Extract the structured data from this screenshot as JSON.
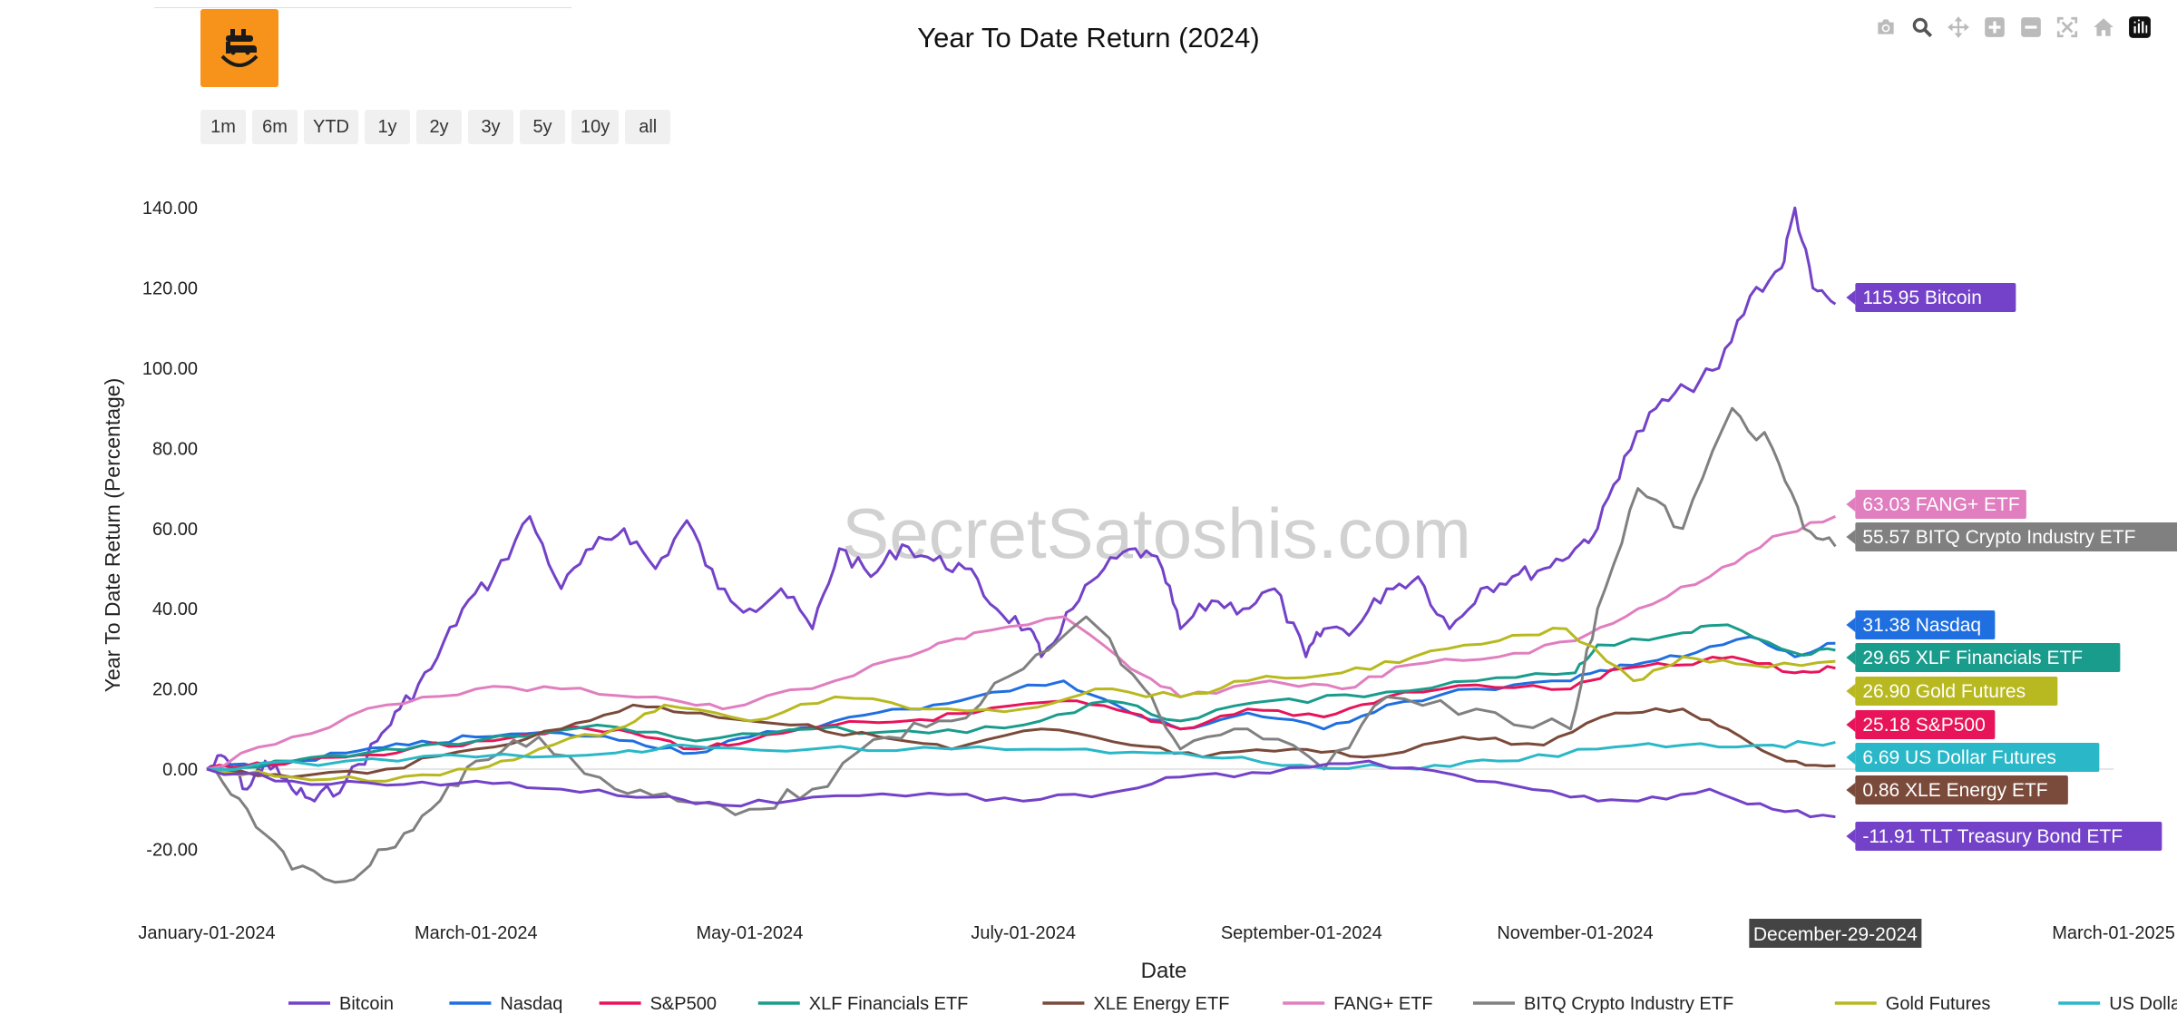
{
  "title": "Year To Date Return (2024)",
  "watermark": "SecretSatoshis.com",
  "range_buttons": [
    "1m",
    "6m",
    "YTD",
    "1y",
    "2y",
    "3y",
    "5y",
    "10y",
    "all"
  ],
  "modebar_icons": [
    "camera-icon",
    "zoom-icon",
    "pan-icon",
    "zoom-in-icon",
    "zoom-out-icon",
    "autoscale-icon",
    "home-icon",
    "plotly-logo-icon"
  ],
  "chart_data": {
    "type": "line",
    "title": "Year To Date Return (2024)",
    "xlabel": "Date",
    "ylabel": "Year To Date Return (Percentage)",
    "ylim": [
      -31,
      150
    ],
    "xlim": [
      "2024-01-01",
      "2025-03-01"
    ],
    "x_ticks": [
      "January-01-2024",
      "March-01-2024",
      "May-01-2024",
      "July-01-2024",
      "September-01-2024",
      "November-01-2024",
      "March-01-2025"
    ],
    "y_ticks": [
      "140.00",
      "120.00",
      "100.00",
      "80.00",
      "60.00",
      "40.00",
      "20.00",
      "0.00",
      "-20.00"
    ],
    "hover_date": "December-29-2024",
    "legend_position": "bottom",
    "series": [
      {
        "name": "Bitcoin",
        "color": "#7342c8",
        "final": "115.95",
        "label": "115.95 Bitcoin",
        "dates": [
          "2024-01-01",
          "2024-01-05",
          "2024-01-10",
          "2024-01-14",
          "2024-01-20",
          "2024-01-25",
          "2024-02-01",
          "2024-02-08",
          "2024-02-13",
          "2024-02-20",
          "2024-02-27",
          "2024-03-05",
          "2024-03-13",
          "2024-03-20",
          "2024-03-27",
          "2024-04-03",
          "2024-04-10",
          "2024-04-17",
          "2024-04-24",
          "2024-05-01",
          "2024-05-08",
          "2024-05-15",
          "2024-05-21",
          "2024-05-28",
          "2024-06-04",
          "2024-06-11",
          "2024-06-18",
          "2024-06-25",
          "2024-07-02",
          "2024-07-05",
          "2024-07-12",
          "2024-07-19",
          "2024-07-26",
          "2024-08-01",
          "2024-08-05",
          "2024-08-12",
          "2024-08-19",
          "2024-08-26",
          "2024-09-02",
          "2024-09-06",
          "2024-09-13",
          "2024-09-20",
          "2024-09-27",
          "2024-10-04",
          "2024-10-11",
          "2024-10-18",
          "2024-10-25",
          "2024-11-01",
          "2024-11-06",
          "2024-11-12",
          "2024-11-19",
          "2024-11-26",
          "2024-12-03",
          "2024-12-10",
          "2024-12-17",
          "2024-12-20",
          "2024-12-24",
          "2024-12-29"
        ],
        "values": [
          0,
          3,
          -5,
          2,
          -5,
          -8,
          -3,
          7,
          15,
          25,
          40,
          48,
          63,
          45,
          55,
          60,
          50,
          62,
          45,
          40,
          45,
          35,
          55,
          48,
          56,
          52,
          50,
          40,
          35,
          28,
          40,
          50,
          55,
          50,
          35,
          42,
          40,
          45,
          28,
          35,
          35,
          45,
          48,
          35,
          45,
          48,
          50,
          55,
          60,
          78,
          90,
          95,
          100,
          118,
          125,
          140,
          120,
          116
        ]
      },
      {
        "name": "Nasdaq",
        "color": "#1f6fe0",
        "final": "31.38",
        "label": "31.38 Nasdaq",
        "dates": [
          "2024-01-01",
          "2024-01-15",
          "2024-02-01",
          "2024-02-15",
          "2024-03-01",
          "2024-03-20",
          "2024-04-05",
          "2024-04-19",
          "2024-05-01",
          "2024-05-20",
          "2024-06-05",
          "2024-06-20",
          "2024-07-10",
          "2024-07-25",
          "2024-08-05",
          "2024-08-20",
          "2024-09-06",
          "2024-09-20",
          "2024-10-10",
          "2024-10-31",
          "2024-11-11",
          "2024-11-25",
          "2024-12-10",
          "2024-12-20",
          "2024-12-29"
        ],
        "values": [
          0,
          1,
          4,
          6,
          8,
          9,
          7,
          4,
          8,
          12,
          15,
          18,
          22,
          14,
          10,
          14,
          10,
          16,
          20,
          22,
          26,
          28,
          33,
          28,
          31.38
        ]
      },
      {
        "name": "S&P500",
        "color": "#e8145a",
        "final": "25.18",
        "label": "25.18 S&P500",
        "dates": [
          "2024-01-01",
          "2024-01-15",
          "2024-02-01",
          "2024-02-15",
          "2024-03-01",
          "2024-03-20",
          "2024-04-05",
          "2024-04-19",
          "2024-05-01",
          "2024-05-20",
          "2024-06-05",
          "2024-06-20",
          "2024-07-10",
          "2024-07-25",
          "2024-08-05",
          "2024-08-20",
          "2024-09-06",
          "2024-09-20",
          "2024-10-10",
          "2024-10-31",
          "2024-11-11",
          "2024-11-25",
          "2024-12-06",
          "2024-12-20",
          "2024-12-29"
        ],
        "values": [
          0,
          1,
          3,
          5,
          7,
          10,
          9,
          5,
          7,
          11,
          12,
          14,
          17,
          14,
          10,
          15,
          13,
          18,
          21,
          20,
          25,
          26,
          28,
          24,
          25.18
        ]
      },
      {
        "name": "XLF Financials ETF",
        "color": "#1a9c8c",
        "final": "29.65",
        "label": "29.65 XLF Financials ETF",
        "dates": [
          "2024-01-01",
          "2024-01-20",
          "2024-02-10",
          "2024-03-01",
          "2024-03-28",
          "2024-04-19",
          "2024-05-15",
          "2024-06-10",
          "2024-07-01",
          "2024-07-20",
          "2024-08-05",
          "2024-08-25",
          "2024-09-15",
          "2024-10-10",
          "2024-11-01",
          "2024-11-06",
          "2024-11-25",
          "2024-12-05",
          "2024-12-20",
          "2024-12-29"
        ],
        "values": [
          0,
          2,
          5,
          7,
          11,
          7,
          10,
          9,
          11,
          17,
          12,
          17,
          18,
          22,
          24,
          31,
          34,
          36,
          29,
          29.65
        ]
      },
      {
        "name": "XLE Energy ETF",
        "color": "#7a4a3a",
        "final": "0.86",
        "label": "0.86 XLE Energy ETF",
        "dates": [
          "2024-01-01",
          "2024-01-20",
          "2024-02-10",
          "2024-03-01",
          "2024-03-20",
          "2024-04-05",
          "2024-04-20",
          "2024-05-10",
          "2024-05-30",
          "2024-06-15",
          "2024-07-05",
          "2024-07-25",
          "2024-08-10",
          "2024-08-30",
          "2024-09-15",
          "2024-10-07",
          "2024-10-25",
          "2024-11-10",
          "2024-11-25",
          "2024-12-05",
          "2024-12-18",
          "2024-12-29"
        ],
        "values": [
          0,
          -2,
          0,
          5,
          10,
          16,
          14,
          11,
          8,
          5,
          10,
          6,
          3,
          5,
          3,
          8,
          6,
          14,
          15,
          10,
          2,
          0.86
        ]
      },
      {
        "name": "FANG+ ETF",
        "color": "#e07ec0",
        "final": "63.03",
        "label": "63.03 FANG+ ETF",
        "dates": [
          "2024-01-01",
          "2024-01-20",
          "2024-02-10",
          "2024-03-01",
          "2024-03-20",
          "2024-04-10",
          "2024-04-25",
          "2024-05-20",
          "2024-06-10",
          "2024-06-20",
          "2024-07-10",
          "2024-07-25",
          "2024-08-05",
          "2024-08-25",
          "2024-09-10",
          "2024-09-25",
          "2024-10-15",
          "2024-11-01",
          "2024-11-15",
          "2024-12-01",
          "2024-12-15",
          "2024-12-29"
        ],
        "values": [
          0,
          8,
          16,
          20,
          20,
          18,
          15,
          22,
          30,
          34,
          38,
          25,
          18,
          22,
          20,
          26,
          28,
          32,
          40,
          48,
          58,
          63.03
        ]
      },
      {
        "name": "BITQ Crypto Industry ETF",
        "color": "#808080",
        "final": "55.57",
        "label": "55.57 BITQ Crypto Industry ETF",
        "dates": [
          "2024-01-01",
          "2024-01-10",
          "2024-01-20",
          "2024-02-01",
          "2024-02-10",
          "2024-02-20",
          "2024-03-01",
          "2024-03-15",
          "2024-04-01",
          "2024-04-15",
          "2024-05-01",
          "2024-05-15",
          "2024-06-01",
          "2024-06-15",
          "2024-07-01",
          "2024-07-15",
          "2024-07-28",
          "2024-08-05",
          "2024-08-20",
          "2024-09-06",
          "2024-09-20",
          "2024-10-10",
          "2024-10-31",
          "2024-11-06",
          "2024-11-15",
          "2024-11-25",
          "2024-12-06",
          "2024-12-15",
          "2024-12-22",
          "2024-12-29"
        ],
        "values": [
          0,
          -10,
          -25,
          -28,
          -20,
          -10,
          2,
          8,
          -5,
          -8,
          -10,
          -5,
          8,
          12,
          25,
          38,
          20,
          5,
          10,
          0,
          18,
          15,
          10,
          40,
          70,
          60,
          90,
          80,
          60,
          55.57
        ]
      },
      {
        "name": "Gold Futures",
        "color": "#b8b820",
        "final": "26.90",
        "label": "26.90 Gold Futures",
        "dates": [
          "2024-01-01",
          "2024-01-20",
          "2024-02-10",
          "2024-03-01",
          "2024-03-15",
          "2024-04-01",
          "2024-04-12",
          "2024-05-01",
          "2024-05-20",
          "2024-06-10",
          "2024-07-01",
          "2024-07-17",
          "2024-08-05",
          "2024-08-20",
          "2024-09-10",
          "2024-09-26",
          "2024-10-15",
          "2024-10-30",
          "2024-11-14",
          "2024-11-25",
          "2024-12-10",
          "2024-12-29"
        ],
        "values": [
          0,
          -2,
          -3,
          0,
          5,
          10,
          16,
          12,
          18,
          15,
          15,
          20,
          18,
          22,
          24,
          28,
          32,
          35,
          22,
          28,
          26,
          26.9
        ]
      },
      {
        "name": "US Dollar Futures",
        "color": "#2ab8c8",
        "final": "6.69",
        "label": "6.69 US Dollar Futures",
        "dates": [
          "2024-01-01",
          "2024-02-01",
          "2024-03-01",
          "2024-04-01",
          "2024-04-16",
          "2024-05-15",
          "2024-06-15",
          "2024-07-15",
          "2024-08-10",
          "2024-09-01",
          "2024-09-27",
          "2024-10-15",
          "2024-11-06",
          "2024-11-25",
          "2024-12-15",
          "2024-12-29"
        ],
        "values": [
          0,
          2,
          3,
          4,
          6,
          5,
          5,
          5,
          3,
          1,
          0,
          2,
          5,
          6,
          6,
          6.69
        ]
      },
      {
        "name": "TLT Treasury Bond ETF",
        "color": "#7342c8",
        "final": "-11.91",
        "label": "-11.91 TLT Treasury Bond ETF",
        "dates": [
          "2024-01-01",
          "2024-01-20",
          "2024-02-10",
          "2024-03-01",
          "2024-03-20",
          "2024-04-10",
          "2024-04-25",
          "2024-05-15",
          "2024-06-10",
          "2024-07-01",
          "2024-07-20",
          "2024-08-05",
          "2024-08-25",
          "2024-09-16",
          "2024-10-10",
          "2024-10-31",
          "2024-11-15",
          "2024-12-01",
          "2024-12-15",
          "2024-12-29"
        ],
        "values": [
          0,
          -3,
          -4,
          -3,
          -5,
          -7,
          -9,
          -7,
          -6,
          -8,
          -6,
          -2,
          -1,
          2,
          -3,
          -7,
          -8,
          -5,
          -10,
          -11.91
        ]
      }
    ]
  }
}
